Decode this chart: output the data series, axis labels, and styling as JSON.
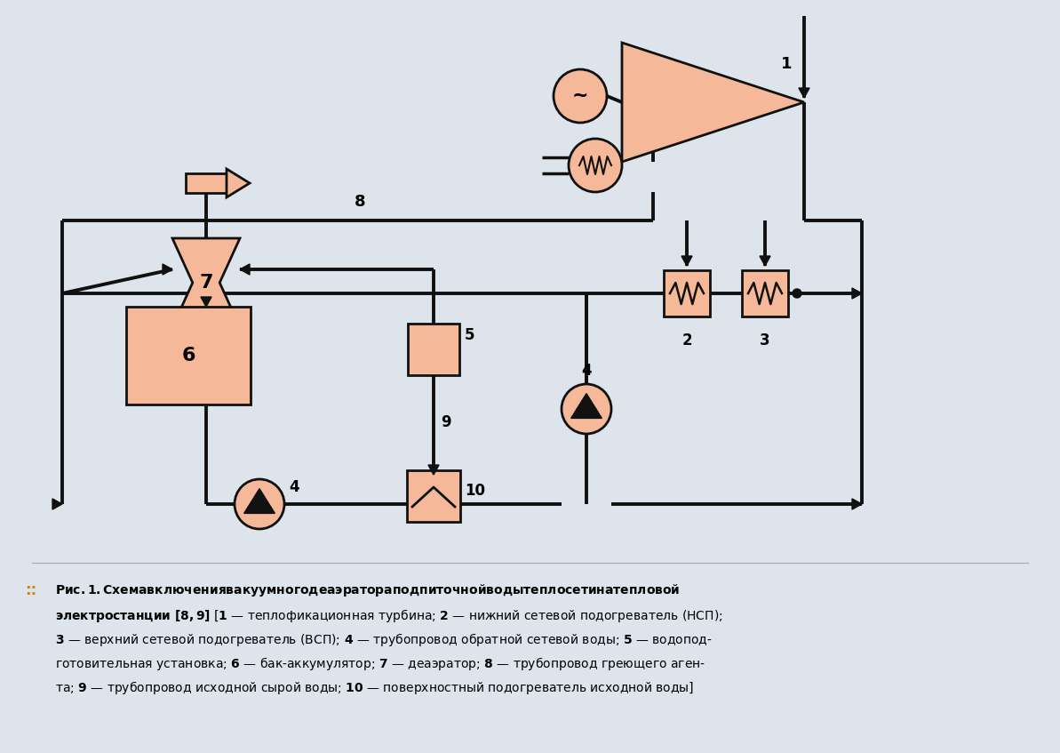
{
  "bg_color": "#dde4eb",
  "fill": "#f5b99a",
  "edge": "#111111",
  "lc": "#111111",
  "lw": 2.8,
  "caption_lines": [
    "::",
    "Рис. 1. Схема включения вакуумного деаэратора подпиточной воды теплосети на тепловой",
    "электростанции [8, 9] [1 — теплофикационная турбина; 2 — нижний сетевой подогреватель (НСП);",
    "3 — верхний сетевой подогреватель (ВСП); 4 — трубопровод обратной сетевой воды; 5 — водопод-",
    "готовительная установка; 6 — бак-аккумулятор; 7 — деаэратор; 8 — трубопровод греющего аген-",
    "та; 9 — трубопровод исходной сырой воды; 10 — поверхностный подогреватель исходной воды]"
  ]
}
